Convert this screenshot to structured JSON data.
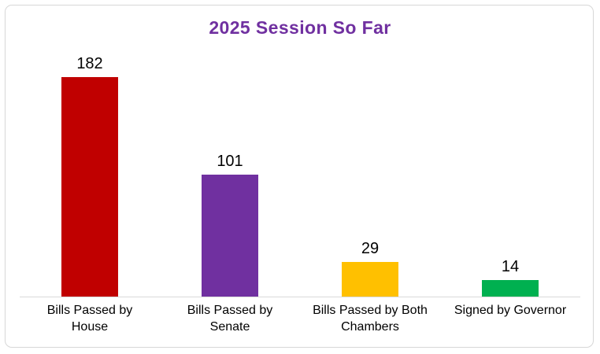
{
  "chart_data": {
    "type": "bar",
    "title": "2025 Session So Far",
    "categories": [
      "Bills Passed by House",
      "Bills Passed by Senate",
      "Bills Passed by Both Chambers",
      "Signed by Governor"
    ],
    "category_label_lines": [
      [
        "Bills Passed by",
        "House"
      ],
      [
        "Bills Passed by",
        "Senate"
      ],
      [
        "Bills Passed by Both",
        "Chambers"
      ],
      [
        "Signed by Governor"
      ]
    ],
    "values": [
      182,
      101,
      29,
      14
    ],
    "data_labels": [
      "182",
      "101",
      "29",
      "14"
    ],
    "bar_colors": [
      "#C00000",
      "#7030A0",
      "#FFC000",
      "#00B050"
    ],
    "xlabel": "",
    "ylabel": "",
    "ylim": [
      0,
      200
    ],
    "grid": false,
    "legend": false,
    "data_labels_position": "above-bars",
    "axis_shown": "x-only"
  },
  "style": {
    "title_color": "#7030A0",
    "axis_line_color": "#D9D9D9",
    "frame_border_color": "#D7D7D7",
    "label_color": "#000000",
    "background_color": "#FFFFFF"
  }
}
